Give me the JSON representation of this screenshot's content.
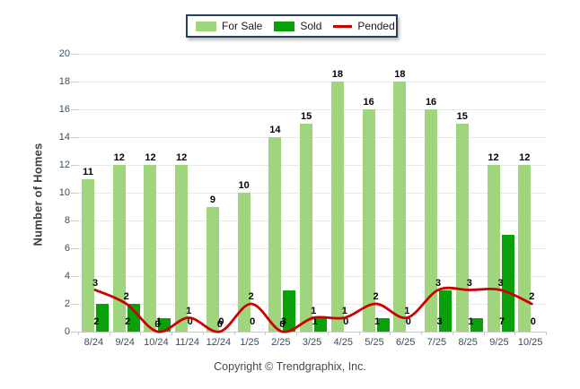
{
  "legend": {
    "items": [
      {
        "label": "For Sale",
        "swatch": "box"
      },
      {
        "label": "Sold",
        "swatch": "box"
      },
      {
        "label": "Pended",
        "swatch": "line"
      }
    ]
  },
  "y_axis": {
    "title": "Number of Homes",
    "ticks": [
      0,
      2,
      4,
      6,
      8,
      10,
      12,
      14,
      16,
      18,
      20
    ]
  },
  "footer": {
    "text": "Copyright © Trendgraphix, Inc."
  },
  "colors": {
    "for_sale": "#9FD57D",
    "sold": "#0AA00A",
    "pended": "#CC0000",
    "legend_border": "#24405E",
    "grid": "#E9E9E9",
    "axis": "#C9C9C9",
    "tick_text": "#3C4B5E"
  },
  "chart_data": {
    "type": "bar",
    "categories": [
      "8/24",
      "9/24",
      "10/24",
      "11/24",
      "12/24",
      "1/25",
      "2/25",
      "3/25",
      "4/25",
      "5/25",
      "6/25",
      "7/25",
      "8/25",
      "9/25",
      "10/25"
    ],
    "series": [
      {
        "name": "For Sale",
        "type": "bar",
        "color": "#9FD57D",
        "values": [
          11,
          12,
          12,
          12,
          9,
          10,
          14,
          15,
          18,
          16,
          18,
          16,
          15,
          12,
          12
        ]
      },
      {
        "name": "Sold",
        "type": "bar",
        "color": "#0AA00A",
        "values": [
          2,
          2,
          1,
          0,
          0,
          0,
          3,
          1,
          0,
          1,
          0,
          3,
          1,
          7,
          0
        ]
      },
      {
        "name": "Pended",
        "type": "line",
        "color": "#CC0000",
        "values": [
          3,
          2,
          0,
          1,
          0,
          2,
          0,
          1,
          1,
          2,
          1,
          3,
          3,
          3,
          2
        ]
      }
    ],
    "title": "",
    "xlabel": "",
    "ylabel": "Number of Homes",
    "ylim": [
      0,
      20
    ],
    "grid": true,
    "legend_position": "top"
  }
}
